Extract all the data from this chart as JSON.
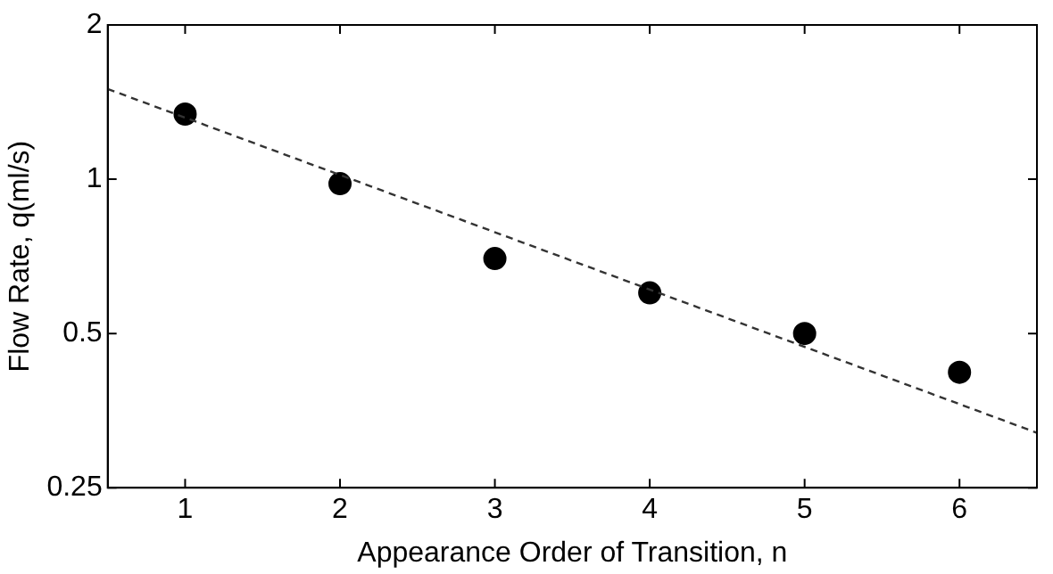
{
  "chart_data": {
    "type": "scatter",
    "xlabel": "Appearance Order of Transition, n",
    "ylabel": "Flow Rate, q(ml/s)",
    "log": "y",
    "grid": false,
    "legend": false,
    "marker": "circle",
    "xlim": [
      0.5,
      6.5
    ],
    "xticks": [
      1,
      2,
      3,
      4,
      5,
      6
    ],
    "ylim": [
      0.25,
      2
    ],
    "yticks": [
      0.25,
      0.5,
      1,
      2
    ],
    "series": [
      {
        "color": "#000000",
        "x": [
          1,
          2,
          3,
          4,
          5,
          6
        ],
        "values": [
          1.34,
          0.98,
          0.7,
          0.6,
          0.5,
          0.42
        ]
      },
      {
        "type": "line",
        "color": "#333333",
        "line_style": "dashed",
        "marker": "none",
        "x": [
          0.5,
          6.5
        ],
        "values": [
          1.5,
          0.32
        ]
      }
    ]
  }
}
